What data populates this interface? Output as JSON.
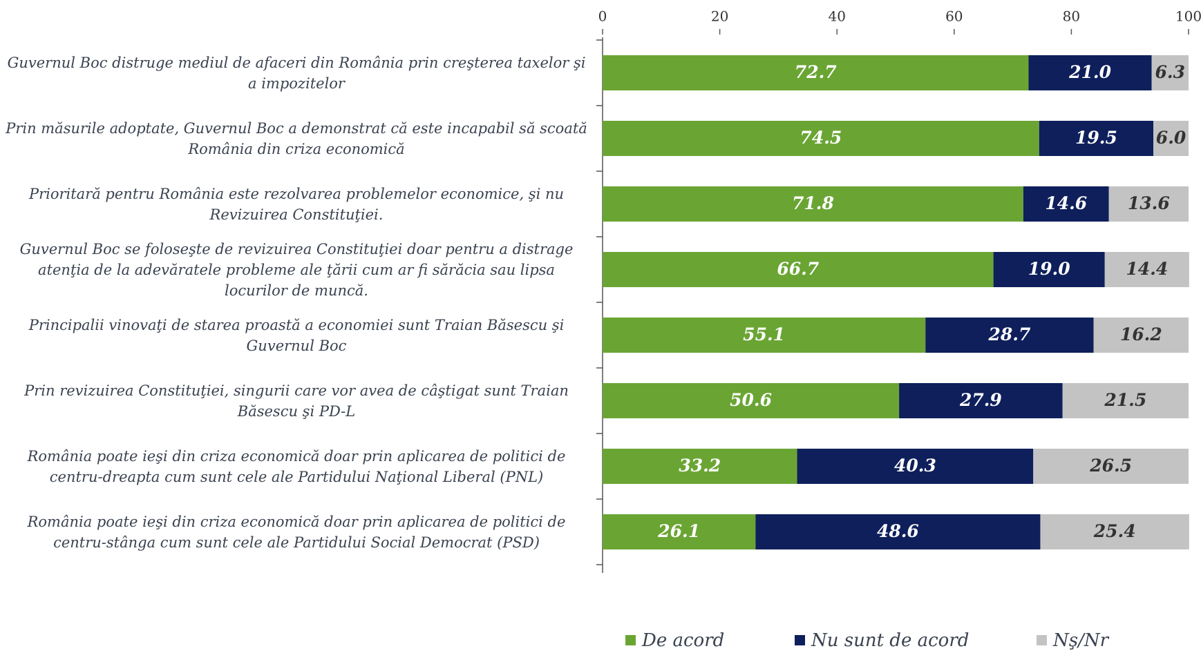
{
  "chart_data": {
    "type": "stacked-bar-horizontal",
    "categories": [
      "Guvernul Boc distruge mediul de afaceri din România prin creşterea taxelor şi a impozitelor",
      "Prin măsurile adoptate, Guvernul Boc a demonstrat că este incapabil să scoată România din criza economică",
      "Prioritară pentru România este rezolvarea problemelor economice, şi nu Revizuirea Constituţiei.",
      "Guvernul Boc se foloseşte de revizuirea Constituţiei doar pentru a distrage atenţia de la adevăratele probleme ale ţării cum ar fi sărăcia sau lipsa locurilor de muncă.",
      "Principalii vinovaţi de starea proastă a economiei sunt Traian Băsescu şi Guvernul Boc",
      "Prin revizuirea Constituţiei, singurii care vor avea de câştigat sunt Traian Băsescu şi PD-L",
      "România poate ieşi din criza economică doar prin aplicarea de politici de centru-dreapta cum sunt cele ale Partidului Naţional Liberal (PNL)",
      "România poate ieşi din criza economică doar prin aplicarea de politici de centru-stânga cum sunt cele ale Partidului Social Democrat (PSD)"
    ],
    "series": [
      {
        "name": "De acord",
        "color": "#6aa534",
        "values": [
          72.7,
          74.5,
          71.8,
          66.7,
          55.1,
          50.6,
          33.2,
          26.1
        ],
        "value_labels": [
          "72.7",
          "74.5",
          "71.8",
          "66.7",
          "55.1",
          "50.6",
          "33.2",
          "26.1"
        ]
      },
      {
        "name": "Nu sunt de acord",
        "color": "#0e1f5b",
        "values": [
          21.0,
          19.5,
          14.6,
          19.0,
          28.7,
          27.9,
          40.3,
          48.6
        ],
        "value_labels": [
          "21.0",
          "19.5",
          "14.6",
          "19.0",
          "28.7",
          "27.9",
          "40.3",
          "48.6"
        ]
      },
      {
        "name": "Nş/Nr",
        "color": "#c3c3c3",
        "values": [
          6.3,
          6.0,
          13.6,
          14.4,
          16.2,
          21.5,
          26.5,
          25.4
        ],
        "value_labels": [
          "6.3",
          "6.0",
          "13.6",
          "14.4",
          "16.2",
          "21.5",
          "26.5",
          "25.4"
        ]
      }
    ],
    "xlim": [
      0,
      100
    ],
    "xticks": [
      0,
      20,
      40,
      60,
      80,
      100
    ]
  }
}
